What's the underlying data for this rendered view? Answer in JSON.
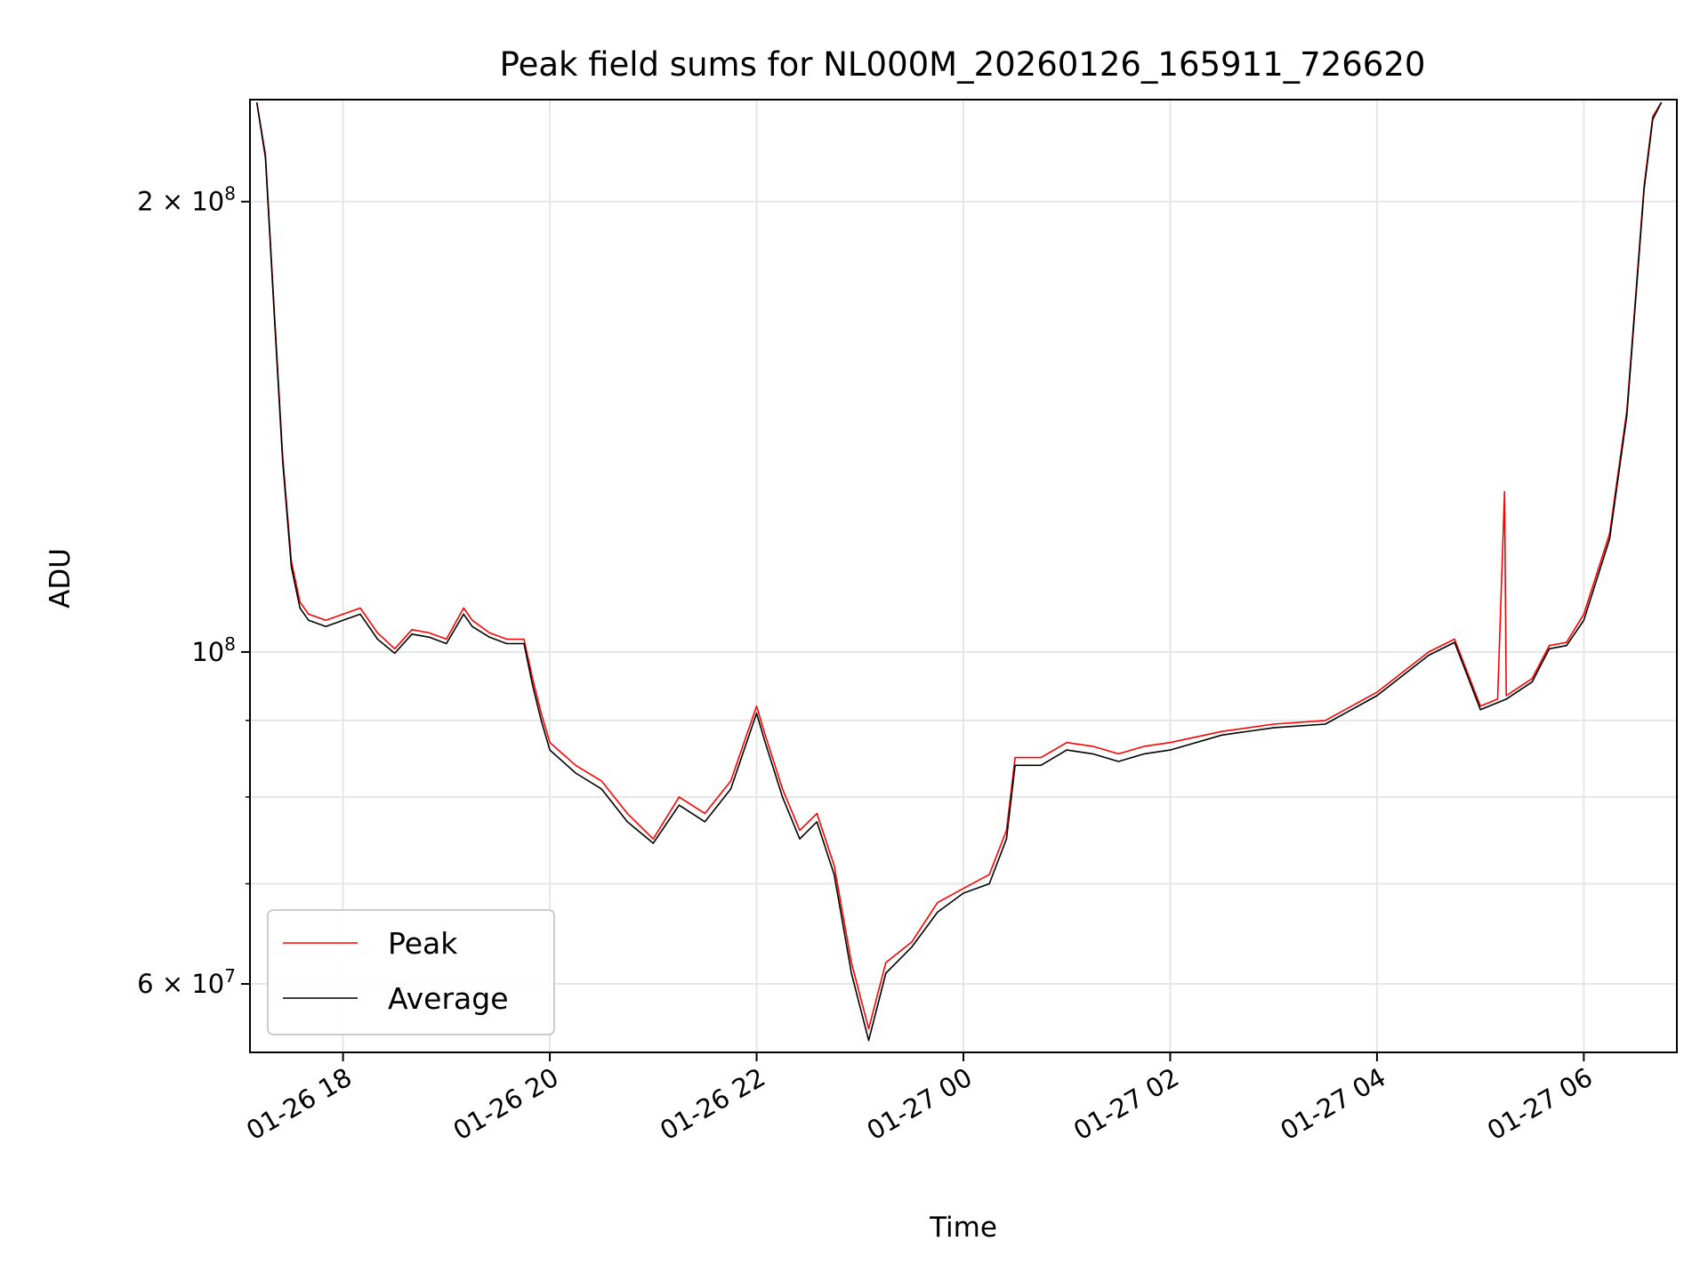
{
  "chart_data": {
    "type": "line",
    "title": "Peak field sums for NL000M_20260126_165911_726620",
    "xlabel": "Time",
    "ylabel": "ADU",
    "yscale": "log",
    "ylim": [
      54000000,
      234000000
    ],
    "xlim": [
      "01-26 17:06",
      "01-27 06:54"
    ],
    "grid": true,
    "legend_position": "lower-left",
    "x_ticks": [
      "01-26 18",
      "01-26 20",
      "01-26 22",
      "01-27 00",
      "01-27 02",
      "01-27 04",
      "01-27 06"
    ],
    "y_major_ticks": [
      {
        "value": 60000000,
        "label": "6 × 10",
        "exp": "7"
      },
      {
        "value": 100000000,
        "label": "10",
        "exp": "8"
      },
      {
        "value": 200000000,
        "label": "2 × 10",
        "exp": "8"
      }
    ],
    "y_minor_gridlines": [
      70000000,
      80000000,
      90000000
    ],
    "series": [
      {
        "name": "Peak",
        "color": "#ff0000",
        "x": [
          "01-26 17:10",
          "01-26 17:15",
          "01-26 17:20",
          "01-26 17:25",
          "01-26 17:30",
          "01-26 17:35",
          "01-26 17:40",
          "01-26 17:50",
          "01-26 18:00",
          "01-26 18:10",
          "01-26 18:20",
          "01-26 18:30",
          "01-26 18:40",
          "01-26 18:50",
          "01-26 19:00",
          "01-26 19:10",
          "01-26 19:15",
          "01-26 19:25",
          "01-26 19:35",
          "01-26 19:45",
          "01-26 19:50",
          "01-26 19:55",
          "01-26 20:00",
          "01-26 20:15",
          "01-26 20:30",
          "01-26 20:45",
          "01-26 21:00",
          "01-26 21:15",
          "01-26 21:30",
          "01-26 21:45",
          "01-26 22:00",
          "01-26 22:05",
          "01-26 22:15",
          "01-26 22:25",
          "01-26 22:35",
          "01-26 22:45",
          "01-26 22:55",
          "01-26 23:05",
          "01-26 23:15",
          "01-26 23:30",
          "01-26 23:45",
          "01-27 00:00",
          "01-27 00:15",
          "01-27 00:25",
          "01-27 00:30",
          "01-27 00:45",
          "01-27 01:00",
          "01-27 01:15",
          "01-27 01:30",
          "01-27 01:45",
          "01-27 02:00",
          "01-27 02:30",
          "01-27 03:00",
          "01-27 03:30",
          "01-27 04:00",
          "01-27 04:30",
          "01-27 04:45",
          "01-27 05:00",
          "01-27 05:10",
          "01-27 05:14",
          "01-27 05:15",
          "01-27 05:30",
          "01-27 05:40",
          "01-27 05:50",
          "01-27 06:00",
          "01-27 06:15",
          "01-27 06:25",
          "01-27 06:35",
          "01-27 06:40",
          "01-27 06:45"
        ],
        "values": [
          233000000,
          215000000,
          170000000,
          135000000,
          115000000,
          108000000,
          106000000,
          105000000,
          106000000,
          107000000,
          103000000,
          100500000,
          103500000,
          103000000,
          102000000,
          107000000,
          105000000,
          103000000,
          102000000,
          102000000,
          96000000,
          91000000,
          87000000,
          84000000,
          82000000,
          78000000,
          75000000,
          80000000,
          78000000,
          82000000,
          92000000,
          88000000,
          81000000,
          76000000,
          78000000,
          72000000,
          62000000,
          56000000,
          62000000,
          64000000,
          68000000,
          69500000,
          71000000,
          76000000,
          85000000,
          85000000,
          87000000,
          86500000,
          85500000,
          86500000,
          87000000,
          88500000,
          89500000,
          90000000,
          94000000,
          100000000,
          102000000,
          92000000,
          93000000,
          128000000,
          93500000,
          96000000,
          101000000,
          101500000,
          106000000,
          120000000,
          145000000,
          205000000,
          228000000,
          233000000
        ]
      },
      {
        "name": "Average",
        "color": "#000000",
        "x": [
          "01-26 17:10",
          "01-26 17:15",
          "01-26 17:20",
          "01-26 17:25",
          "01-26 17:30",
          "01-26 17:35",
          "01-26 17:40",
          "01-26 17:50",
          "01-26 18:00",
          "01-26 18:10",
          "01-26 18:20",
          "01-26 18:30",
          "01-26 18:40",
          "01-26 18:50",
          "01-26 19:00",
          "01-26 19:10",
          "01-26 19:15",
          "01-26 19:25",
          "01-26 19:35",
          "01-26 19:45",
          "01-26 19:50",
          "01-26 19:55",
          "01-26 20:00",
          "01-26 20:15",
          "01-26 20:30",
          "01-26 20:45",
          "01-26 21:00",
          "01-26 21:15",
          "01-26 21:30",
          "01-26 21:45",
          "01-26 22:00",
          "01-26 22:05",
          "01-26 22:15",
          "01-26 22:25",
          "01-26 22:35",
          "01-26 22:45",
          "01-26 22:55",
          "01-26 23:05",
          "01-26 23:15",
          "01-26 23:30",
          "01-26 23:45",
          "01-27 00:00",
          "01-27 00:15",
          "01-27 00:25",
          "01-27 00:30",
          "01-27 00:45",
          "01-27 01:00",
          "01-27 01:15",
          "01-27 01:30",
          "01-27 01:45",
          "01-27 02:00",
          "01-27 02:30",
          "01-27 03:00",
          "01-27 03:30",
          "01-27 04:00",
          "01-27 04:30",
          "01-27 04:45",
          "01-27 05:00",
          "01-27 05:10",
          "01-27 05:15",
          "01-27 05:30",
          "01-27 05:40",
          "01-27 05:50",
          "01-27 06:00",
          "01-27 06:15",
          "01-27 06:25",
          "01-27 06:35",
          "01-27 06:40",
          "01-27 06:45"
        ],
        "values": [
          233000000,
          214000000,
          169000000,
          134000000,
          114000000,
          107000000,
          105000000,
          104000000,
          105000000,
          106000000,
          102000000,
          99800000,
          102800000,
          102300000,
          101300000,
          106000000,
          104000000,
          102300000,
          101300000,
          101300000,
          95000000,
          90000000,
          86000000,
          83000000,
          81000000,
          77000000,
          74500000,
          79000000,
          77000000,
          81000000,
          91000000,
          87000000,
          80000000,
          75000000,
          77000000,
          71000000,
          61000000,
          55000000,
          61000000,
          63500000,
          67000000,
          69000000,
          70000000,
          75000000,
          84000000,
          84000000,
          86000000,
          85500000,
          84500000,
          85500000,
          86000000,
          88000000,
          89000000,
          89500000,
          93500000,
          99500000,
          101500000,
          91500000,
          92500000,
          93000000,
          95500000,
          100500000,
          101000000,
          105000000,
          119000000,
          144000000,
          204000000,
          227000000,
          233000000
        ]
      }
    ]
  }
}
